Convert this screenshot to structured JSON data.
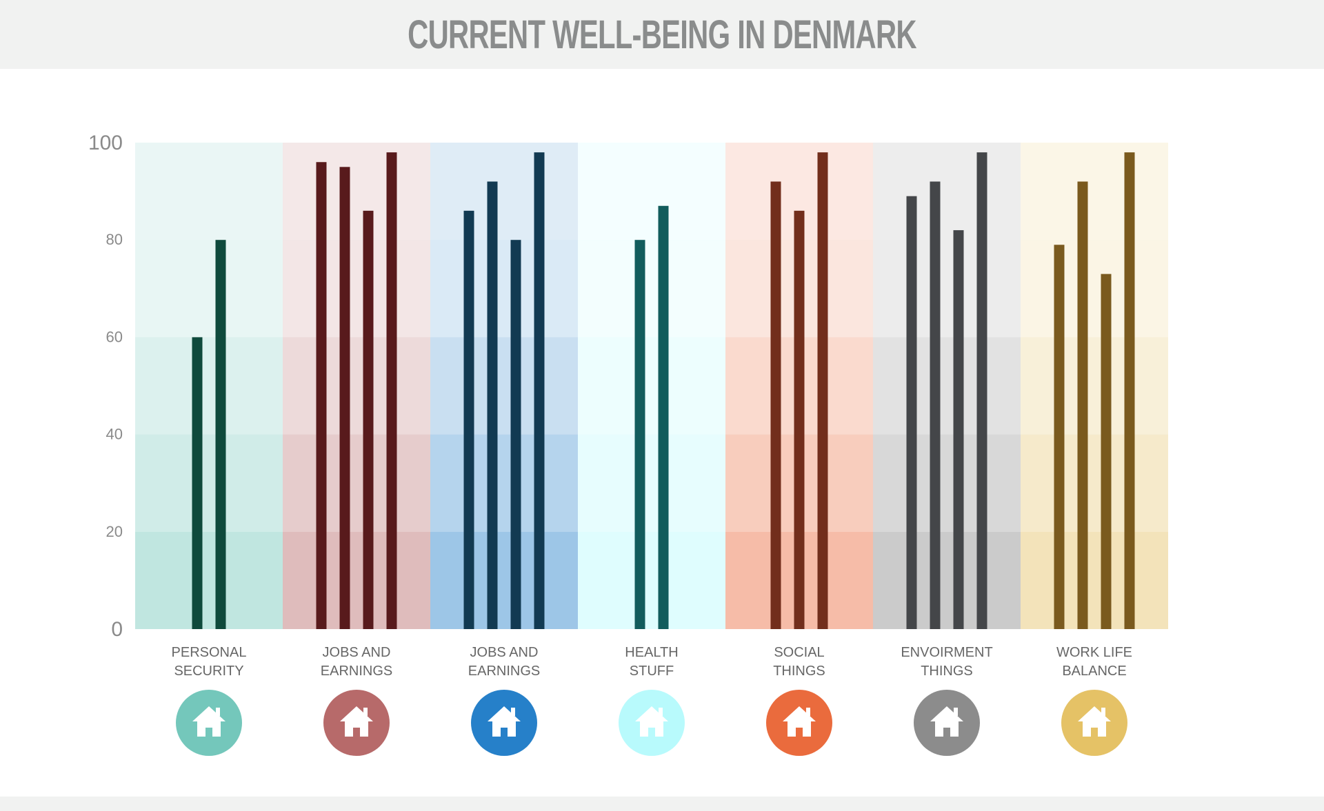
{
  "title": "CURRENT WELL-BEING IN DENMARK",
  "chart_data": {
    "type": "bar",
    "title": "CURRENT WELL-BEING IN DENMARK",
    "ylim": [
      0,
      100
    ],
    "yticks": [
      0,
      20,
      40,
      60,
      80,
      100
    ],
    "grid": true,
    "categories": [
      {
        "label_lines": [
          "PERSONAL",
          "SECURITY"
        ],
        "values": [
          60,
          80
        ],
        "bar_color": "#0f4a3c",
        "band_color": "#74c7bb",
        "icon_color": "#74c7bb",
        "icon": "house-icon"
      },
      {
        "label_lines": [
          "JOBS AND",
          "EARNINGS"
        ],
        "values": [
          96,
          95,
          86,
          98
        ],
        "bar_color": "#581a1c",
        "band_color": "#b76a6a",
        "icon_color": "#b76a6a",
        "icon": "house-icon"
      },
      {
        "label_lines": [
          "JOBS AND",
          "EARNINGS"
        ],
        "values": [
          86,
          92,
          80,
          98
        ],
        "bar_color": "#123a52",
        "band_color": "#2680c9",
        "icon_color": "#2680c9",
        "icon": "house-icon"
      },
      {
        "label_lines": [
          "HEALTH",
          "STUFF"
        ],
        "values": [
          80,
          87
        ],
        "bar_color": "#125c5c",
        "band_color": "#b8fafc",
        "icon_color": "#b8fafc",
        "icon": "house-icon"
      },
      {
        "label_lines": [
          "SOCIAL",
          "THINGS"
        ],
        "values": [
          92,
          86,
          98
        ],
        "bar_color": "#722e1c",
        "band_color": "#ea6b3d",
        "icon_color": "#ea6b3d",
        "icon": "house-icon"
      },
      {
        "label_lines": [
          "ENVOIRMENT",
          "THINGS"
        ],
        "values": [
          89,
          92,
          82,
          98
        ],
        "bar_color": "#444649",
        "band_color": "#8c8c8c",
        "icon_color": "#8c8c8c",
        "icon": "house-icon"
      },
      {
        "label_lines": [
          "WORK LIFE",
          "BALANCE"
        ],
        "values": [
          79,
          92,
          73,
          98
        ],
        "bar_color": "#7a5a1e",
        "band_color": "#e5c266",
        "icon_color": "#e5c266",
        "icon": "house-icon"
      }
    ]
  }
}
